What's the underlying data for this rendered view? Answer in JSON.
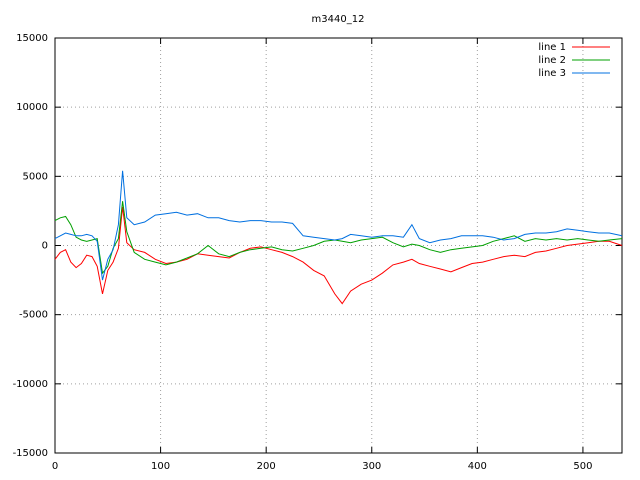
{
  "chart_data": {
    "type": "line",
    "title": "m3440_12",
    "x": [
      0,
      5,
      10,
      15,
      20,
      25,
      30,
      35,
      40,
      45,
      50,
      55,
      60,
      64,
      68,
      75,
      85,
      95,
      105,
      115,
      125,
      135,
      145,
      155,
      165,
      175,
      185,
      195,
      205,
      215,
      225,
      235,
      245,
      255,
      265,
      272,
      280,
      290,
      300,
      310,
      320,
      330,
      338,
      345,
      355,
      365,
      375,
      385,
      395,
      405,
      415,
      425,
      435,
      445,
      455,
      465,
      475,
      485,
      495,
      505,
      515,
      525,
      537
    ],
    "series": [
      {
        "name": "line 1",
        "color": "#ff0000",
        "values": [
          -1000,
          -500,
          -300,
          -1200,
          -1600,
          -1300,
          -700,
          -800,
          -1500,
          -3500,
          -1800,
          -1200,
          -200,
          2800,
          200,
          -300,
          -500,
          -1000,
          -1300,
          -1200,
          -1000,
          -600,
          -700,
          -800,
          -900,
          -500,
          -200,
          -100,
          -300,
          -500,
          -800,
          -1200,
          -1800,
          -2200,
          -3500,
          -4200,
          -3300,
          -2800,
          -2500,
          -2000,
          -1400,
          -1200,
          -1000,
          -1300,
          -1500,
          -1700,
          -1900,
          -1600,
          -1300,
          -1200,
          -1000,
          -800,
          -700,
          -800,
          -500,
          -400,
          -200,
          0,
          100,
          200,
          300,
          300,
          0
        ]
      },
      {
        "name": "line 2",
        "color": "#00a000",
        "values": [
          1800,
          2000,
          2100,
          1500,
          600,
          400,
          300,
          400,
          500,
          -2000,
          -1500,
          -200,
          500,
          3200,
          1000,
          -500,
          -1000,
          -1200,
          -1400,
          -1200,
          -900,
          -600,
          0,
          -600,
          -800,
          -500,
          -300,
          -200,
          -100,
          -300,
          -400,
          -200,
          0,
          300,
          400,
          300,
          200,
          400,
          500,
          600,
          200,
          -100,
          100,
          0,
          -300,
          -500,
          -300,
          -200,
          -100,
          0,
          300,
          500,
          700,
          300,
          500,
          400,
          500,
          400,
          500,
          400,
          300,
          400,
          500
        ]
      },
      {
        "name": "line 3",
        "color": "#0070e0",
        "values": [
          500,
          700,
          900,
          800,
          700,
          700,
          800,
          700,
          300,
          -2500,
          -1000,
          -300,
          1500,
          5400,
          2000,
          1500,
          1700,
          2200,
          2300,
          2400,
          2200,
          2300,
          2000,
          2000,
          1800,
          1700,
          1800,
          1800,
          1700,
          1700,
          1600,
          700,
          600,
          500,
          400,
          500,
          800,
          700,
          600,
          700,
          700,
          600,
          1500,
          500,
          200,
          400,
          500,
          700,
          700,
          700,
          600,
          400,
          500,
          800,
          900,
          900,
          1000,
          1200,
          1100,
          1000,
          900,
          900,
          700
        ]
      }
    ],
    "xlim": [
      0,
      537
    ],
    "ylim": [
      -15000,
      15000
    ],
    "xticks": [
      0,
      100,
      200,
      300,
      400,
      500
    ],
    "yticks": [
      -15000,
      -10000,
      -5000,
      0,
      5000,
      10000,
      15000
    ],
    "grid": true,
    "legend": "top-right"
  }
}
